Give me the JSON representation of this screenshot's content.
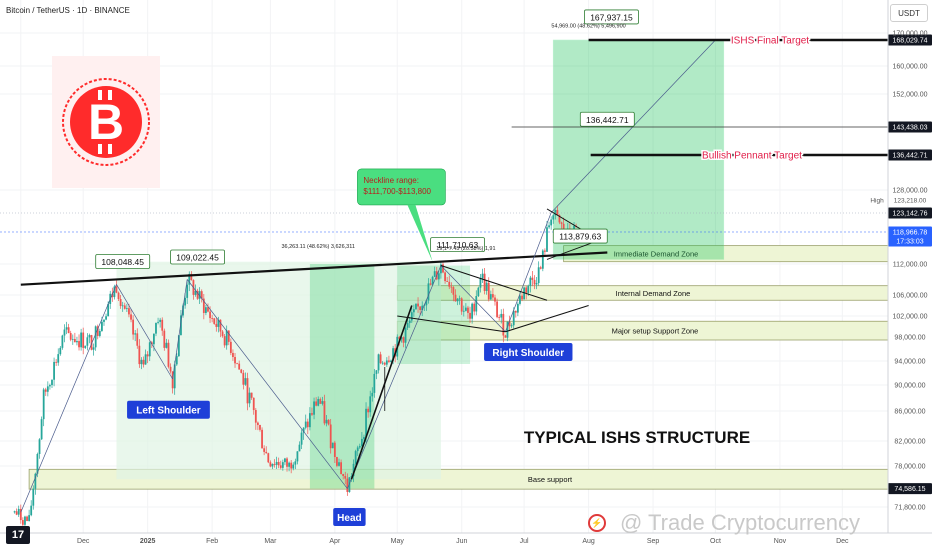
{
  "header": {
    "symbol_label": "Bitcoin / TetherUS · 1D · BINANCE"
  },
  "currency_button": {
    "label": "USDT"
  },
  "watermark": {
    "text": "@ Trade Cryptocurrency"
  },
  "chart_data": {
    "type": "candlestick",
    "title": "TYPICAL ISHS STRUCTURE",
    "x_ticks": [
      "Nov",
      "Dec",
      "2025",
      "Feb",
      "Mar",
      "Apr",
      "May",
      "Jun",
      "Jul",
      "Aug",
      "Sep",
      "Oct",
      "Nov",
      "Dec"
    ],
    "y_ticks": [
      "170,000.00",
      "160,000.00",
      "152,000.00",
      "128,000.00",
      "112,000.00",
      "106,000.00",
      "102,000.00",
      "98,000.00",
      "94,000.00",
      "90,000.00",
      "86,000.00",
      "82,000.00",
      "78,000.00",
      "71,800.00"
    ],
    "ylim": [
      70000,
      172000
    ],
    "price_tags": [
      {
        "value": 168029.74,
        "label": "168,029.74",
        "style": "dark"
      },
      {
        "value": 143438.03,
        "label": "143,438.03",
        "style": "dark"
      },
      {
        "value": 136442.71,
        "label": "136,442.71",
        "style": "dark"
      },
      {
        "value": 123142.76,
        "label": "123,142.76",
        "style": "dark"
      },
      {
        "value": 118966.78,
        "label": "118,966.78",
        "style": "blue",
        "sublabel": "17:33:03"
      },
      {
        "value": 74586.15,
        "label": "74,586.15",
        "style": "dark"
      }
    ],
    "high_marker": {
      "label": "High",
      "value_label": "123,218.00",
      "value": 123218
    },
    "current_price": 118966.78,
    "price_path": [
      {
        "x": "2024-10-29",
        "y": 71000
      },
      {
        "x": "2024-11-05",
        "y": 69500
      },
      {
        "x": "2024-11-12",
        "y": 88000
      },
      {
        "x": "2024-11-22",
        "y": 98500
      },
      {
        "x": "2024-12-05",
        "y": 97000
      },
      {
        "x": "2024-12-17",
        "y": 108048
      },
      {
        "x": "2024-12-30",
        "y": 92500
      },
      {
        "x": "2025-01-06",
        "y": 102000
      },
      {
        "x": "2025-01-13",
        "y": 91000
      },
      {
        "x": "2025-01-20",
        "y": 109022
      },
      {
        "x": "2025-01-31",
        "y": 102000
      },
      {
        "x": "2025-02-10",
        "y": 96500
      },
      {
        "x": "2025-02-28",
        "y": 79000
      },
      {
        "x": "2025-03-10",
        "y": 78000
      },
      {
        "x": "2025-03-24",
        "y": 88000
      },
      {
        "x": "2025-04-07",
        "y": 74586
      },
      {
        "x": "2025-04-15",
        "y": 84000
      },
      {
        "x": "2025-04-22",
        "y": 93500
      },
      {
        "x": "2025-05-01",
        "y": 96500
      },
      {
        "x": "2025-05-12",
        "y": 104000
      },
      {
        "x": "2025-05-22",
        "y": 111710
      },
      {
        "x": "2025-06-05",
        "y": 101000
      },
      {
        "x": "2025-06-10",
        "y": 110000
      },
      {
        "x": "2025-06-22",
        "y": 99000
      },
      {
        "x": "2025-07-01",
        "y": 107000
      },
      {
        "x": "2025-07-09",
        "y": 111000
      },
      {
        "x": "2025-07-14",
        "y": 123218
      },
      {
        "x": "2025-07-22",
        "y": 118000
      },
      {
        "x": "2025-07-26",
        "y": 118966
      }
    ],
    "neckline": {
      "from": {
        "x": "2024-11-01",
        "y": 108000
      },
      "to": {
        "x": "2025-08-10",
        "y": 114500
      }
    },
    "zones": [
      {
        "label": "Immediate Demand Zone",
        "y_range": [
          112500,
          116000
        ]
      },
      {
        "label": "Internal Demand Zone",
        "y_range": [
          105000,
          107800
        ]
      },
      {
        "label": "Major setup Support Zone",
        "y_range": [
          97500,
          101000
        ]
      },
      {
        "label": "Base support",
        "y_range": [
          74500,
          77500
        ]
      }
    ],
    "targets": [
      {
        "label": "ISHS Final Target",
        "value": 168029.74
      },
      {
        "label": "Bullish Pennant Target",
        "value": 136442.71
      }
    ],
    "price_labels": [
      "108,048.45",
      "109,022.45",
      "111,710.63",
      "113,879.63",
      "136,442.71",
      "167,937.15"
    ],
    "pattern_labels": [
      "Left Shoulder",
      "Head",
      "Right Shoulder"
    ],
    "neckline_callout": [
      "Neckline range:",
      "$111,700-$113,800"
    ],
    "measure_texts": [
      "36,263.11 (48.62%) 3,626,311",
      "19,1‑7.45 (20.58%) 1,91",
      "54,969.00 (48.62%) 5,496,900"
    ],
    "colors": {
      "up": "#26a69a",
      "down": "#ef5350",
      "projection": "#22c55e",
      "callout": "#4ade80",
      "label_bg": "#1e3fd8",
      "target_text": "#e11d48",
      "zone_fill": "#eef5d5",
      "price_tag": "#131722",
      "current_tag": "#2962ff"
    }
  }
}
